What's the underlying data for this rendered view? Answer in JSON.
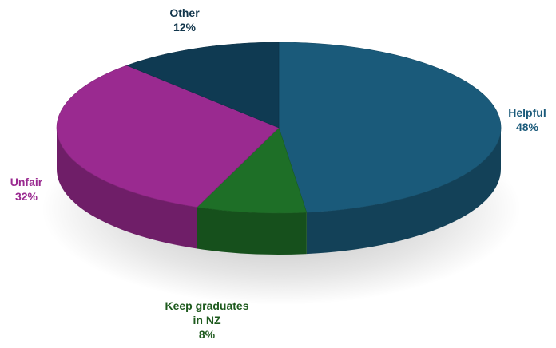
{
  "chart_data": {
    "type": "pie",
    "variant": "3d",
    "slices": [
      {
        "name": "Helpful",
        "label_lines": [
          "Helpful"
        ],
        "percent_label": "48%",
        "value": 48,
        "color": "#1a5a7a",
        "label_color": "#1a5a7a"
      },
      {
        "name": "Keep graduates in NZ",
        "label_lines": [
          "Keep graduates",
          "in NZ"
        ],
        "percent_label": "8%",
        "value": 8,
        "color": "#1e6f27",
        "label_color": "#1e5a1e"
      },
      {
        "name": "Unfair",
        "label_lines": [
          "Unfair"
        ],
        "percent_label": "32%",
        "value": 32,
        "color": "#9a2a90",
        "label_color": "#9a2a90"
      },
      {
        "name": "Other",
        "label_lines": [
          "Other"
        ],
        "percent_label": "12%",
        "value": 12,
        "color": "#0f3a52",
        "label_color": "#12364c"
      }
    ]
  }
}
